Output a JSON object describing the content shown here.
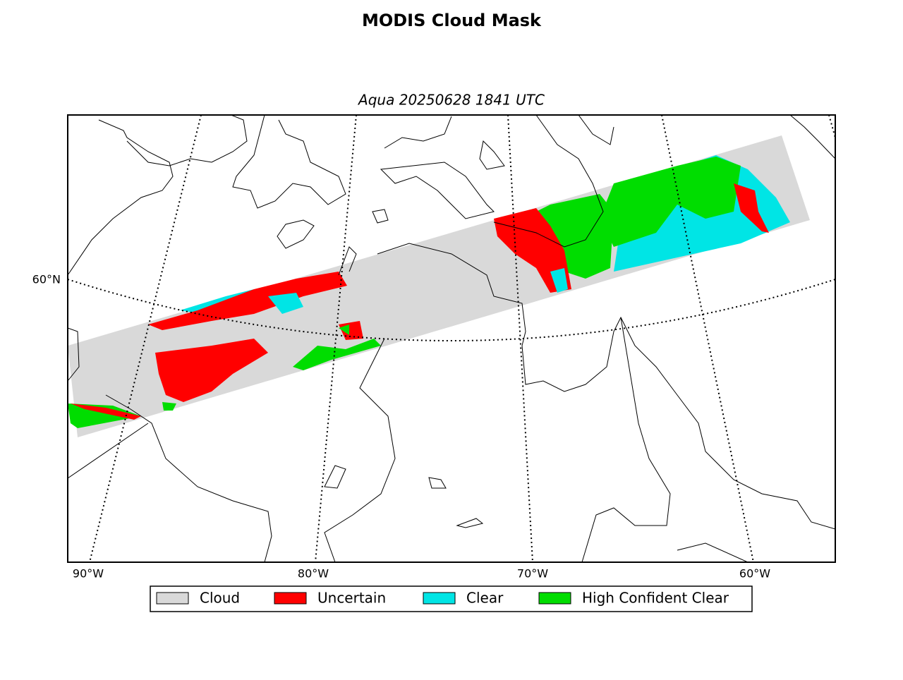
{
  "map": {
    "title": "MODIS Cloud Mask",
    "subtitle": "Aqua 20250628 1841 UTC",
    "longitude_labels": [
      "90°W",
      "80°W",
      "70°W",
      "60°W"
    ],
    "latitude_labels": [
      "60°N"
    ],
    "legend": [
      {
        "label": "Cloud",
        "color": "#d9d9d9"
      },
      {
        "label": "Uncertain",
        "color": "#ff0000"
      },
      {
        "label": "Clear",
        "color": "#00e5e5"
      },
      {
        "label": "High Confident Clear",
        "color": "#00dd00"
      }
    ]
  }
}
